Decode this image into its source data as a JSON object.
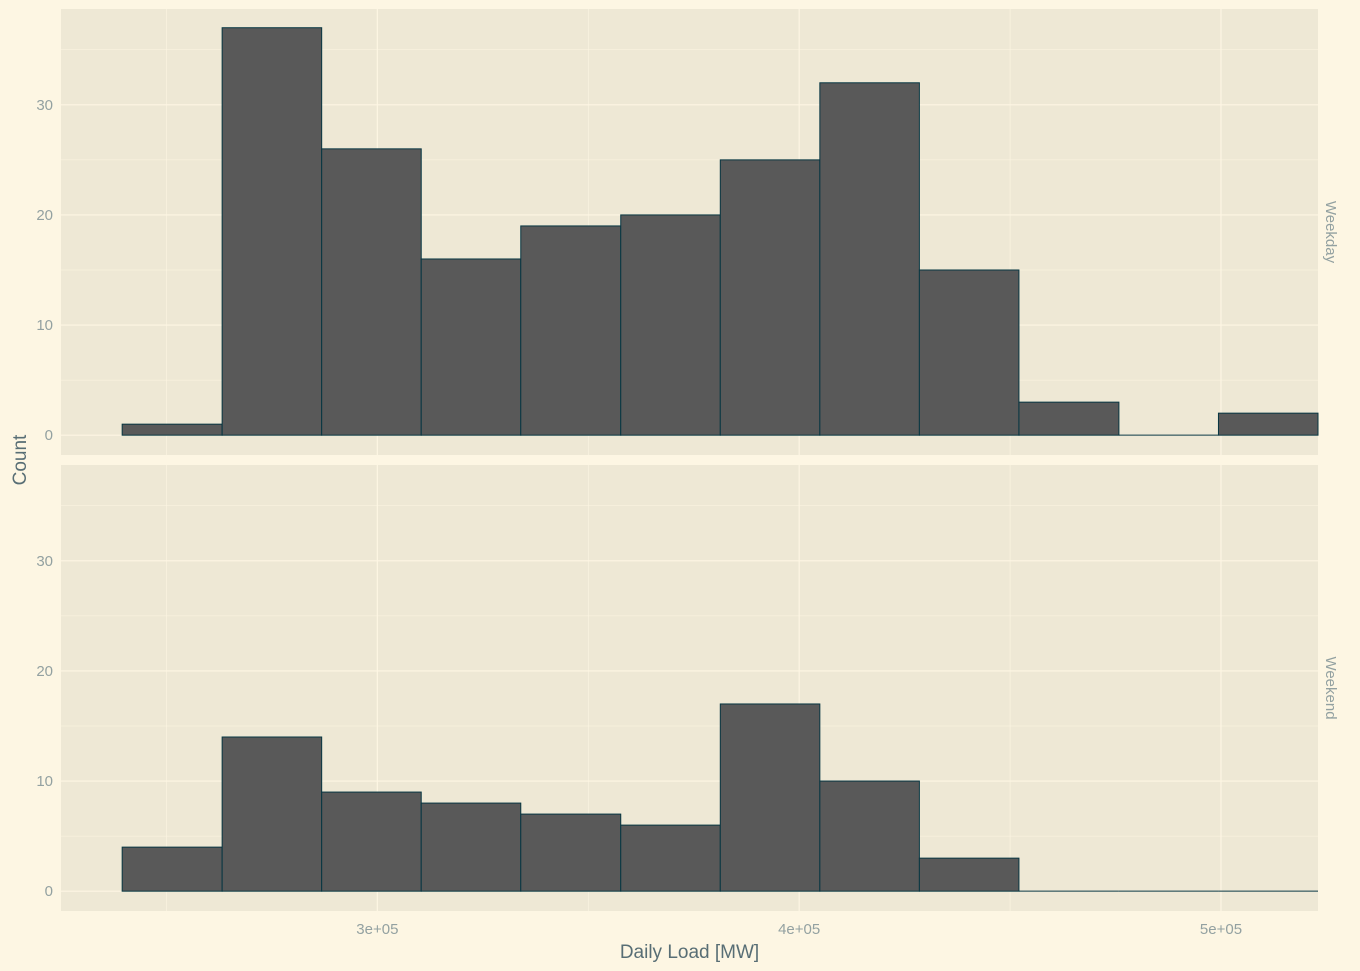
{
  "chart_data": {
    "type": "bar",
    "subtype": "faceted-histogram",
    "xlabel": "Daily Load [MW]",
    "ylabel": "Count",
    "x_ticks": [
      {
        "value": 300000,
        "label": "3e+05"
      },
      {
        "value": 400000,
        "label": "4e+05"
      },
      {
        "value": 500000,
        "label": "5e+05"
      }
    ],
    "y_ticks": [
      0,
      10,
      20,
      30
    ],
    "xlim": [
      225000,
      523000
    ],
    "ylim": [
      -1.8,
      38.7
    ],
    "bin_edges": [
      239500,
      263200,
      286800,
      310400,
      334000,
      357700,
      381300,
      404900,
      428500,
      452100,
      475800,
      499400,
      523000
    ],
    "grid": true,
    "colors": {
      "page_background": "#fdf6e3",
      "panel_background": "#eee8d5",
      "grid": "#fdf6e3",
      "bar_fill": "#595959",
      "bar_stroke": "#073642",
      "axis_title": "#586e75",
      "tick_text": "#93a1a1"
    },
    "facets": [
      {
        "name": "Weekday",
        "counts": [
          1,
          37,
          26,
          16,
          19,
          20,
          25,
          32,
          15,
          3,
          0,
          2
        ]
      },
      {
        "name": "Weekend",
        "counts": [
          4,
          14,
          9,
          8,
          7,
          6,
          17,
          10,
          3,
          0,
          0,
          0
        ]
      }
    ]
  }
}
